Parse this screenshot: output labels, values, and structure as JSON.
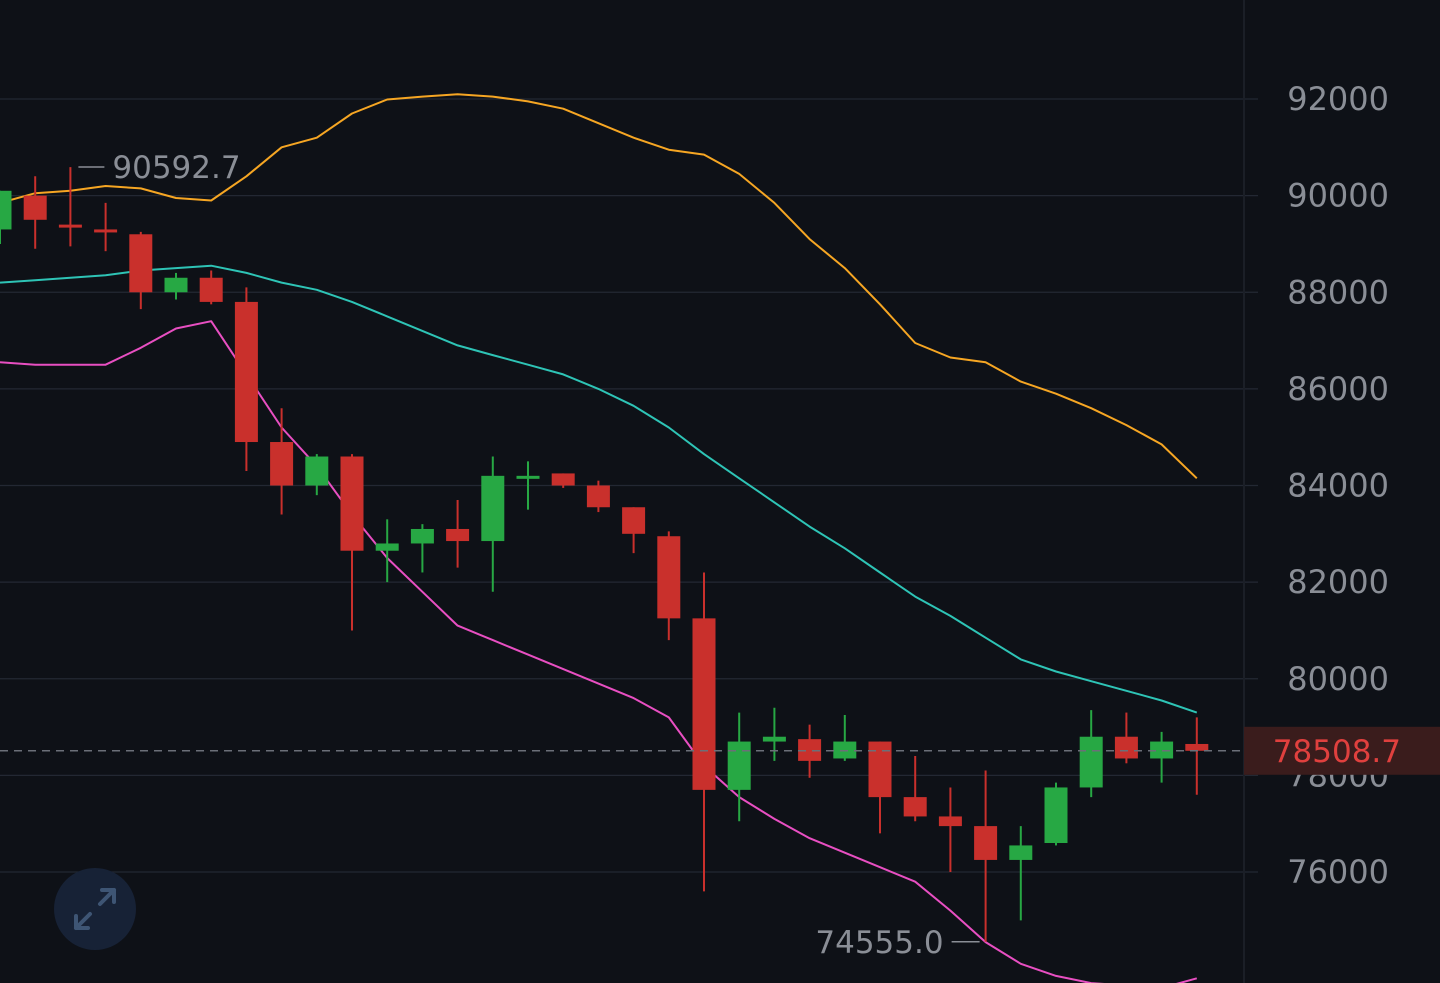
{
  "chart_data": {
    "type": "candlestick",
    "y_axis": {
      "min": 74200,
      "max": 94000,
      "ticks": [
        92000,
        90000,
        88000,
        86000,
        84000,
        82000,
        80000,
        78000,
        76000
      ],
      "tick_labels": [
        "92000",
        "90000",
        "88000",
        "86000",
        "84000",
        "82000",
        "80000",
        "78000",
        "76000"
      ],
      "grid": true
    },
    "candles": [
      {
        "o": 89300,
        "h": 90100,
        "l": 89000,
        "c": 90100
      },
      {
        "o": 90000,
        "h": 90400,
        "l": 88900,
        "c": 89500
      },
      {
        "o": 89400,
        "h": 90590,
        "l": 88950,
        "c": 89350
      },
      {
        "o": 89300,
        "h": 89850,
        "l": 88850,
        "c": 89250
      },
      {
        "o": 89200,
        "h": 89250,
        "l": 87650,
        "c": 88000
      },
      {
        "o": 88000,
        "h": 88400,
        "l": 87850,
        "c": 88300
      },
      {
        "o": 88300,
        "h": 88450,
        "l": 87750,
        "c": 87800
      },
      {
        "o": 87800,
        "h": 88100,
        "l": 84300,
        "c": 84900
      },
      {
        "o": 84900,
        "h": 85600,
        "l": 83400,
        "c": 84000
      },
      {
        "o": 84000,
        "h": 84650,
        "l": 83800,
        "c": 84600
      },
      {
        "o": 84600,
        "h": 84650,
        "l": 81000,
        "c": 82650
      },
      {
        "o": 82650,
        "h": 83300,
        "l": 82000,
        "c": 82800
      },
      {
        "o": 82800,
        "h": 83200,
        "l": 82200,
        "c": 83100
      },
      {
        "o": 83100,
        "h": 83700,
        "l": 82300,
        "c": 82850
      },
      {
        "o": 82850,
        "h": 84600,
        "l": 81800,
        "c": 84200
      },
      {
        "o": 84200,
        "h": 84500,
        "l": 83500,
        "c": 84200
      },
      {
        "o": 84250,
        "h": 84250,
        "l": 83950,
        "c": 84000
      },
      {
        "o": 84000,
        "h": 84100,
        "l": 83450,
        "c": 83550
      },
      {
        "o": 83550,
        "h": 83550,
        "l": 82600,
        "c": 83000
      },
      {
        "o": 82950,
        "h": 83050,
        "l": 80800,
        "c": 81250
      },
      {
        "o": 81250,
        "h": 82200,
        "l": 75600,
        "c": 77700
      },
      {
        "o": 77700,
        "h": 79300,
        "l": 77050,
        "c": 78700
      },
      {
        "o": 78700,
        "h": 79400,
        "l": 78300,
        "c": 78800
      },
      {
        "o": 78750,
        "h": 79050,
        "l": 77950,
        "c": 78300
      },
      {
        "o": 78350,
        "h": 79250,
        "l": 78300,
        "c": 78700
      },
      {
        "o": 78700,
        "h": 78700,
        "l": 76800,
        "c": 77550
      },
      {
        "o": 77550,
        "h": 78400,
        "l": 77050,
        "c": 77150
      },
      {
        "o": 77150,
        "h": 77750,
        "l": 76000,
        "c": 76950
      },
      {
        "o": 76950,
        "h": 78100,
        "l": 74555,
        "c": 76250
      },
      {
        "o": 76250,
        "h": 76950,
        "l": 75000,
        "c": 76550
      },
      {
        "o": 76600,
        "h": 77850,
        "l": 76550,
        "c": 77750
      },
      {
        "o": 77750,
        "h": 79350,
        "l": 77550,
        "c": 78800
      },
      {
        "o": 78800,
        "h": 79300,
        "l": 78250,
        "c": 78350
      },
      {
        "o": 78350,
        "h": 78900,
        "l": 77850,
        "c": 78700
      },
      {
        "o": 78650,
        "h": 79200,
        "l": 77600,
        "c": 78508.7
      }
    ],
    "series": [
      {
        "role": "upper-band",
        "color": "#f6a623",
        "values": [
          89850,
          90050,
          90100,
          90200,
          90150,
          89950,
          89900,
          90400,
          91000,
          91200,
          91700,
          91990,
          92050,
          92100,
          92050,
          91950,
          91800,
          91500,
          91200,
          90950,
          90850,
          90450,
          89850,
          89100,
          88500,
          87750,
          86950,
          86650,
          86550,
          86150,
          85900,
          85600,
          85250,
          84850,
          84150
        ]
      },
      {
        "role": "middle-band",
        "color": "#2ec4b6",
        "values": [
          88200,
          88250,
          88300,
          88350,
          88450,
          88500,
          88550,
          88400,
          88200,
          88050,
          87800,
          87500,
          87200,
          86900,
          86700,
          86500,
          86300,
          86000,
          85650,
          85200,
          84650,
          84150,
          83650,
          83150,
          82700,
          82200,
          81700,
          81300,
          80850,
          80400,
          80150,
          79950,
          79750,
          79550,
          79300
        ]
      },
      {
        "role": "lower-band",
        "color": "#e84fc2",
        "values": [
          86550,
          86500,
          86500,
          86500,
          86850,
          87250,
          87400,
          86300,
          85200,
          84400,
          83400,
          82500,
          81800,
          81100,
          80800,
          80500,
          80200,
          79900,
          79600,
          79200,
          78200,
          77550,
          77100,
          76700,
          76400,
          76100,
          75800,
          75200,
          74550,
          74100,
          73850,
          73700,
          73650,
          73600,
          73800
        ]
      }
    ],
    "annotations": {
      "high": {
        "value": 90592.7,
        "label": "90592.7",
        "index": 2
      },
      "low": {
        "value": 74555.0,
        "label": "74555.0",
        "index": 28
      }
    },
    "last_price": {
      "value": 78508.7,
      "label": "78508.7"
    },
    "colors": {
      "up": "#27a844",
      "down": "#c9302c",
      "background": "#0e1117",
      "grid": "#232833",
      "price_tag_bg": "#3a1c1c",
      "price_text": "#e0403e"
    }
  },
  "controls": {
    "expand_icon": "expand-arrows-icon"
  }
}
